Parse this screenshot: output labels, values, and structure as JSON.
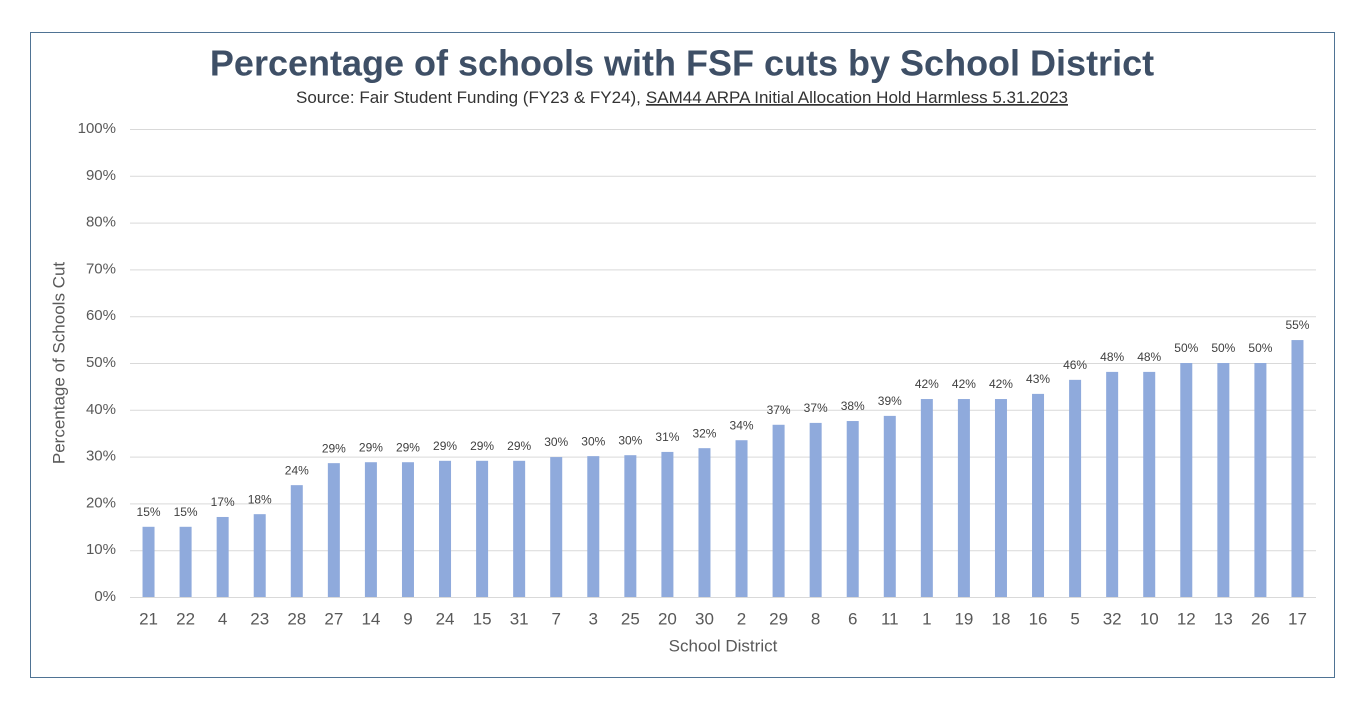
{
  "chart_data": {
    "type": "bar",
    "title": "Percentage of schools with FSF cuts by School District",
    "subtitle": {
      "text": "Source: Fair Student Funding (FY23 & FY24),",
      "link": "SAM44 ARPA Initial Allocation Hold Harmless 5.31.2023"
    },
    "x_label": "School District",
    "y_label": "Percentage of Schools Cut",
    "categories": [
      "21",
      "22",
      "4",
      "23",
      "28",
      "27",
      "14",
      "9",
      "24",
      "15",
      "31",
      "7",
      "3",
      "25",
      "20",
      "30",
      "2",
      "29",
      "8",
      "6",
      "11",
      "1",
      "19",
      "18",
      "16",
      "5",
      "32",
      "10",
      "12",
      "13",
      "26",
      "17"
    ],
    "values": [
      15.0,
      15.0,
      17.1,
      17.7,
      23.9,
      28.6,
      28.8,
      28.8,
      29.1,
      29.1,
      29.1,
      29.9,
      30.1,
      30.3,
      31.0,
      31.8,
      33.5,
      36.8,
      37.2,
      37.6,
      38.7,
      42.3,
      42.3,
      42.3,
      43.4,
      46.4,
      48.1,
      48.1,
      50.0,
      50.0,
      50.0,
      54.9
    ],
    "value_labels": [
      "15%",
      "15%",
      "17%",
      "18%",
      "24%",
      "29%",
      "29%",
      "29%",
      "29%",
      "29%",
      "29%",
      "30%",
      "30%",
      "30%",
      "31%",
      "32%",
      "34%",
      "37%",
      "37%",
      "38%",
      "39%",
      "42%",
      "42%",
      "42%",
      "43%",
      "46%",
      "48%",
      "48%",
      "50%",
      "50%",
      "50%",
      "55%"
    ],
    "color": "#8faadc",
    "ylim": [
      0,
      100
    ],
    "yticks": [
      {
        "value": 0,
        "label": "0%"
      },
      {
        "value": 10,
        "label": "10%"
      },
      {
        "value": 20,
        "label": "20%"
      },
      {
        "value": 30,
        "label": "30%"
      },
      {
        "value": 40,
        "label": "40%"
      },
      {
        "value": 50,
        "label": "50%"
      },
      {
        "value": 60,
        "label": "60%"
      },
      {
        "value": 70,
        "label": "70%"
      },
      {
        "value": 80,
        "label": "80%"
      },
      {
        "value": 90,
        "label": "90%"
      },
      {
        "value": 100,
        "label": "100%"
      }
    ],
    "grid": true
  }
}
